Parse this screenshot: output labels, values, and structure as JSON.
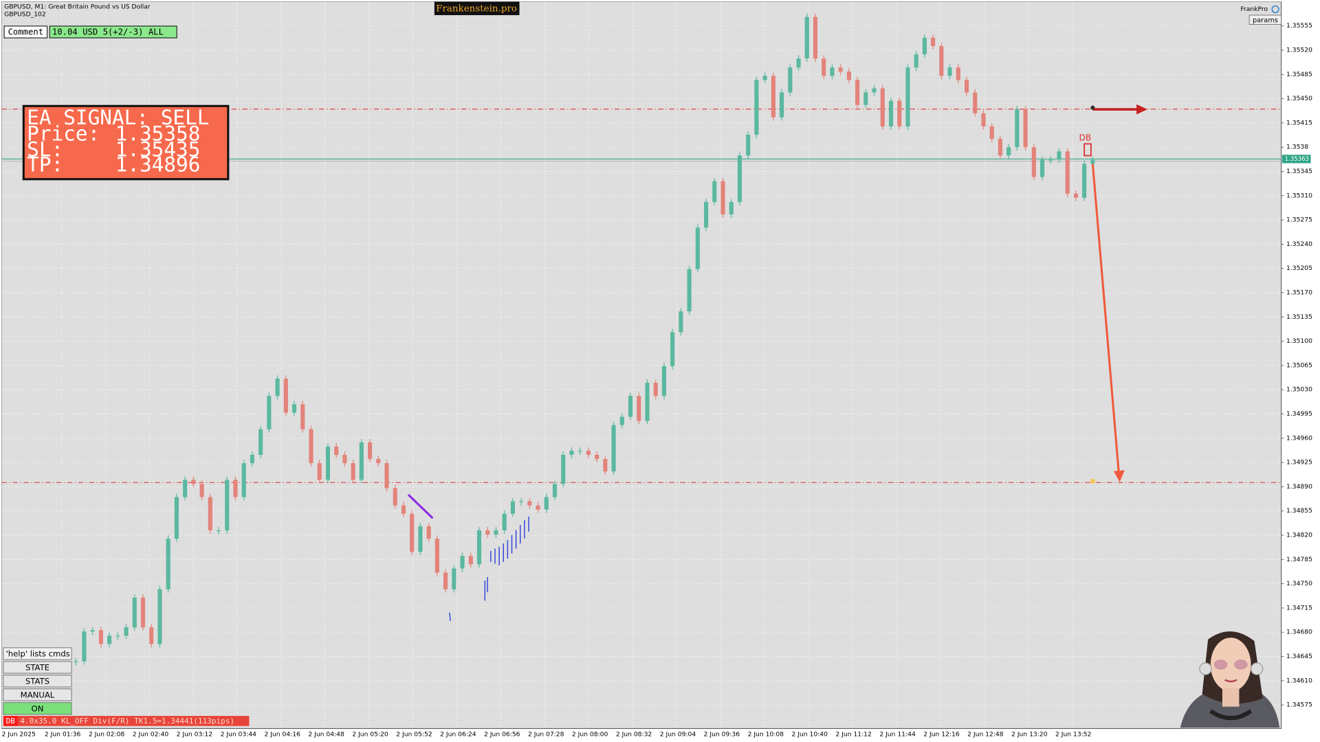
{
  "header": {
    "symbol": "GBPUSD, M1:  Great Britain Pound vs US Dollar",
    "account": "GBPUSD_102",
    "brand": "Frankenstein.pro",
    "indicator": "FrankPro",
    "params": "params"
  },
  "comment": {
    "label": "Comment",
    "value": "10.04 USD 5(+2/-3) ALL"
  },
  "signal": {
    "title": "EA SIGNAL: SELL",
    "price_label": "Price:",
    "price": 1.35358,
    "sl_label": "SL:",
    "sl": 1.35435,
    "tp_label": "TP:",
    "tp": 1.34896
  },
  "chart_data": {
    "type": "candlestick",
    "closes": [
      1.34638,
      1.34681,
      1.34683,
      1.34663,
      1.34675,
      1.34675,
      1.34687,
      1.3473,
      1.34687,
      1.34663,
      1.34742,
      1.34815,
      1.34875,
      1.349,
      1.34894,
      1.34875,
      1.34827,
      1.34827,
      1.349,
      1.34875,
      1.34924,
      1.34936,
      1.34973,
      1.35021,
      1.35046,
      1.34997,
      1.35009,
      1.34973,
      1.34924,
      1.349,
      1.34948,
      1.34936,
      1.34924,
      1.349,
      1.34954,
      1.3493,
      1.34924,
      1.34888,
      1.34863,
      1.34851,
      1.34796,
      1.34833,
      1.34815,
      1.34766,
      1.34742,
      1.34772,
      1.3479,
      1.34778,
      1.34827,
      1.34821,
      1.34827,
      1.34851,
      1.34869,
      1.34869,
      1.34863,
      1.34857,
      1.34875,
      1.34894,
      1.34936,
      1.34942,
      1.34942,
      1.34936,
      1.3493,
      1.34912,
      1.34979,
      1.34991,
      1.35021,
      1.34985,
      1.3504,
      1.35021,
      1.35064,
      1.35113,
      1.35143,
      1.35204,
      1.35264,
      1.35301,
      1.35331,
      1.35283,
      1.35301,
      1.35368,
      1.35398,
      1.35477,
      1.35483,
      1.35423,
      1.35459,
      1.35495,
      1.35508,
      1.35568,
      1.35508,
      1.35483,
      1.35495,
      1.35489,
      1.35477,
      1.35441,
      1.35459,
      1.35465,
      1.3541,
      1.35447,
      1.3541,
      1.35495,
      1.35514,
      1.35538,
      1.35526,
      1.35483,
      1.35495,
      1.35477,
      1.35459,
      1.35429,
      1.3541,
      1.35392,
      1.35368,
      1.3538,
      1.35435,
      1.3538,
      1.35337,
      1.35362,
      1.35362,
      1.35374,
      1.35313,
      1.35307,
      1.35356,
      1.35362
    ],
    "bid": 1.35363,
    "up_color": "#5ab89f",
    "down_color": "#e3837a",
    "grid": true,
    "marker": "DB",
    "ylim": [
      1.34541,
      1.3559
    ],
    "yticks": [
      1.35555,
      {
        "value": 1.3552,
        "label": "1.35520"
      },
      1.35485,
      {
        "value": 1.3545,
        "label": "1.35450"
      },
      1.35415,
      1.3538,
      1.35345,
      {
        "value": 1.3531,
        "label": "1.35310"
      },
      1.35275,
      {
        "value": 1.3524,
        "label": "1.35240"
      },
      1.35205,
      {
        "value": 1.3517,
        "label": "1.35170"
      },
      1.35135,
      {
        "value": 1.351,
        "label": "1.35100"
      },
      1.35065,
      {
        "value": 1.3503,
        "label": "1.35030"
      },
      1.34995,
      {
        "value": 1.3496,
        "label": "1.34960"
      },
      1.34925,
      {
        "value": 1.3489,
        "label": "1.34890"
      },
      1.34855,
      {
        "value": 1.3482,
        "label": "1.34820"
      },
      1.34785,
      {
        "value": 1.3475,
        "label": "1.34750"
      },
      1.34715,
      {
        "value": 1.3468,
        "label": "1.34680"
      },
      1.34645,
      {
        "value": 1.3461,
        "label": "1.34610"
      },
      1.34575
    ],
    "time_labels": [
      "2 Jun 2025",
      "2 Jun 01:36",
      "2 Jun 02:08",
      "2 Jun 02:40",
      "2 Jun 03:12",
      "2 Jun 03:44",
      "2 Jun 04:16",
      "2 Jun 04:48",
      "2 Jun 05:20",
      "2 Jun 05:52",
      "2 Jun 06:24",
      "2 Jun 06:56",
      "2 Jun 07:28",
      "2 Jun 08:00",
      "2 Jun 08:32",
      "2 Jun 09:04",
      "2 Jun 09:36",
      "2 Jun 10:08",
      "2 Jun 10:40",
      "2 Jun 11:12",
      "2 Jun 11:44",
      "2 Jun 12:16",
      "2 Jun 12:48",
      "2 Jun 13:20",
      "2 Jun 13:52"
    ]
  },
  "buttons": [
    "'help' lists cmds",
    "STATE",
    "STATS",
    "MANUAL",
    "ON"
  ],
  "status": {
    "tag": "DB",
    "text": "4.0x35.0 KL_OFF Div(F/R) TK1.5=1.34441(113pips)"
  }
}
